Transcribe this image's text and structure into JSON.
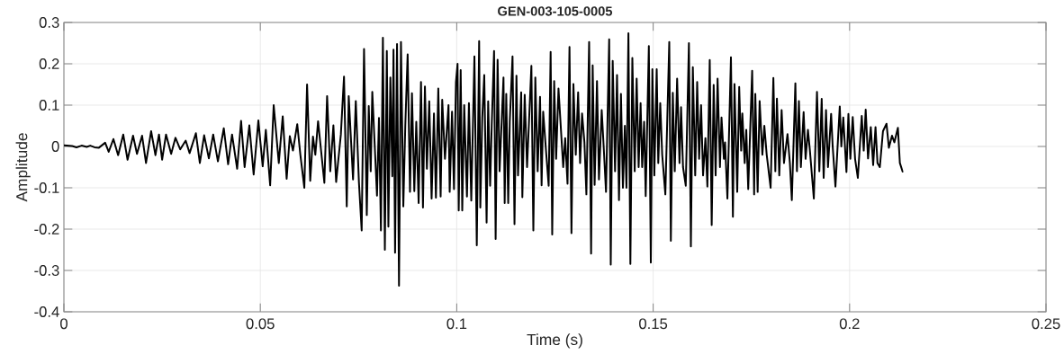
{
  "chart_data": {
    "type": "line",
    "title": "GEN-003-105-0005",
    "xlabel": "Time (s)",
    "ylabel": "Amplitude",
    "xlim": [
      0,
      0.25
    ],
    "ylim": [
      -0.4,
      0.3
    ],
    "xticks": [
      0,
      0.05,
      0.1,
      0.15,
      0.2,
      0.25
    ],
    "yticks": [
      -0.4,
      -0.3,
      -0.2,
      -0.1,
      0,
      0.1,
      0.2,
      0.3
    ],
    "grid": true,
    "line_style": "solid",
    "x": [
      0,
      0.0021,
      0.0032,
      0.0045,
      0.0058,
      0.0067,
      0.0078,
      0.0089,
      0.0105,
      0.0114,
      0.0126,
      0.0138,
      0.0151,
      0.0162,
      0.0176,
      0.0186,
      0.0199,
      0.0209,
      0.0222,
      0.0233,
      0.0242,
      0.025,
      0.026,
      0.0273,
      0.0284,
      0.0296,
      0.031,
      0.032,
      0.0336,
      0.0346,
      0.0357,
      0.0369,
      0.038,
      0.0392,
      0.0407,
      0.0418,
      0.0428,
      0.0441,
      0.0451,
      0.046,
      0.0472,
      0.0483,
      0.0495,
      0.0506,
      0.0514,
      0.0525,
      0.0534,
      0.0547,
      0.0557,
      0.0567,
      0.0575,
      0.0583,
      0.0594,
      0.0602,
      0.0612,
      0.0619,
      0.0627,
      0.0634,
      0.064,
      0.0647,
      0.0663,
      0.067,
      0.0678,
      0.0686,
      0.0693,
      0.0705,
      0.0713,
      0.072,
      0.0725,
      0.0736,
      0.0743,
      0.0751,
      0.0758,
      0.0764,
      0.0771,
      0.0776,
      0.0781,
      0.0785,
      0.0797,
      0.0802,
      0.0807,
      0.0812,
      0.0817,
      0.0822,
      0.0826,
      0.0831,
      0.0836,
      0.0839,
      0.0843,
      0.0848,
      0.0853,
      0.0858,
      0.0864,
      0.0869,
      0.0875,
      0.0881,
      0.0886,
      0.0892,
      0.0897,
      0.0903,
      0.0909,
      0.0914,
      0.0919,
      0.0924,
      0.093,
      0.0936,
      0.0942,
      0.0947,
      0.0953,
      0.0959,
      0.0963,
      0.097,
      0.0979,
      0.0982,
      0.0988,
      0.0993,
      0.0998,
      0.1002,
      0.1005,
      0.101,
      0.1014,
      0.1019,
      0.1026,
      0.1031,
      0.1037,
      0.1045,
      0.1051,
      0.1057,
      0.106,
      0.1065,
      0.107,
      0.1076,
      0.108,
      0.1085,
      0.1089,
      0.1095,
      0.1099,
      0.1104,
      0.1109,
      0.1119,
      0.1122,
      0.1126,
      0.1131,
      0.1135,
      0.1142,
      0.1147,
      0.1152,
      0.1156,
      0.1164,
      0.1167,
      0.1173,
      0.1179,
      0.119,
      0.1195,
      0.12,
      0.1206,
      0.1212,
      0.1216,
      0.122,
      0.1228,
      0.1234,
      0.1239,
      0.1243,
      0.1248,
      0.1253,
      0.1259,
      0.1271,
      0.1276,
      0.1282,
      0.1287,
      0.1292,
      0.1297,
      0.1303,
      0.1309,
      0.1314,
      0.1319,
      0.1325,
      0.133,
      0.1337,
      0.1342,
      0.1346,
      0.1351,
      0.1357,
      0.1362,
      0.1369,
      0.1374,
      0.138,
      0.1388,
      0.1392,
      0.1397,
      0.1403,
      0.1408,
      0.1413,
      0.1418,
      0.1423,
      0.1428,
      0.1432,
      0.1437,
      0.1442,
      0.1447,
      0.1453,
      0.1458,
      0.1463,
      0.1468,
      0.1472,
      0.1477,
      0.1481,
      0.1489,
      0.1494,
      0.1498,
      0.1503,
      0.1509,
      0.1513,
      0.1518,
      0.1523,
      0.1531,
      0.1541,
      0.1545,
      0.155,
      0.1555,
      0.1561,
      0.1567,
      0.1571,
      0.1576,
      0.1583,
      0.1591,
      0.1596,
      0.1601,
      0.1607,
      0.1612,
      0.1617,
      0.1622,
      0.1627,
      0.1633,
      0.1638,
      0.1644,
      0.1649,
      0.1654,
      0.1659,
      0.1664,
      0.167,
      0.1674,
      0.168,
      0.1683,
      0.1689,
      0.1698,
      0.1703,
      0.1707,
      0.1714,
      0.1719,
      0.1724,
      0.1727,
      0.1733,
      0.1737,
      0.1742,
      0.1752,
      0.1757,
      0.176,
      0.1766,
      0.1771,
      0.1778,
      0.1783,
      0.1789,
      0.1799,
      0.1806,
      0.1811,
      0.1815,
      0.1821,
      0.1827,
      0.1833,
      0.1842,
      0.1848,
      0.1853,
      0.1862,
      0.1866,
      0.1871,
      0.1876,
      0.1883,
      0.1888,
      0.1894,
      0.1899,
      0.1909,
      0.1917,
      0.1923,
      0.1929,
      0.1934,
      0.194,
      0.1945,
      0.1953,
      0.1957,
      0.1964,
      0.1975,
      0.1979,
      0.1984,
      0.1992,
      0.1997,
      0.2002,
      0.2008,
      0.2014,
      0.2021,
      0.2031,
      0.2036,
      0.2041,
      0.2047,
      0.2054,
      0.206,
      0.2066,
      0.2071,
      0.2077,
      0.2085,
      0.2094,
      0.21,
      0.2108,
      0.2114,
      0.2123,
      0.2128,
      0.2135
    ],
    "series": [
      {
        "color": "#000000",
        "values": [
          0.003,
          0.001,
          -0.002,
          0.002,
          -0.001,
          0.002,
          -0.002,
          -0.003,
          0.009,
          -0.013,
          0.018,
          -0.021,
          0.029,
          -0.032,
          0.026,
          -0.018,
          0.026,
          -0.04,
          0.037,
          -0.021,
          0.029,
          -0.032,
          0.029,
          -0.018,
          0.021,
          -0.007,
          0.014,
          -0.016,
          0.032,
          -0.04,
          0.027,
          -0.029,
          0.029,
          -0.036,
          0.044,
          -0.043,
          0.029,
          -0.054,
          0.062,
          -0.05,
          0.051,
          -0.068,
          0.063,
          -0.048,
          0.04,
          -0.094,
          0.1,
          -0.04,
          0.073,
          -0.078,
          0.025,
          -0.01,
          0.054,
          -0.021,
          -0.1,
          0.15,
          -0.083,
          0.024,
          -0.02,
          0.061,
          -0.088,
          0.122,
          -0.06,
          0.051,
          -0.086,
          0.029,
          0.169,
          -0.145,
          0.122,
          -0.08,
          0.11,
          -0.087,
          -0.203,
          0.236,
          -0.166,
          0.098,
          -0.06,
          0.132,
          -0.119,
          0.069,
          -0.203,
          0.263,
          -0.25,
          0.231,
          -0.194,
          0.167,
          -0.072,
          0.234,
          -0.257,
          0.248,
          -0.337,
          0.253,
          -0.145,
          0.05,
          0.223,
          -0.11,
          0.129,
          -0.108,
          0.06,
          -0.137,
          0.156,
          -0.148,
          0.145,
          -0.054,
          0.109,
          -0.126,
          0.08,
          -0.124,
          0.14,
          -0.121,
          0.113,
          -0.03,
          0.1,
          -0.11,
          0.084,
          -0.103,
          0.156,
          0.2,
          -0.155,
          0.185,
          -0.155,
          0.1,
          -0.121,
          0.105,
          -0.131,
          0.218,
          -0.239,
          0.255,
          -0.148,
          0.07,
          0.173,
          -0.184,
          0.109,
          -0.095,
          0.05,
          0.231,
          -0.224,
          0.21,
          -0.06,
          0.167,
          -0.137,
          0.127,
          -0.137,
          0.06,
          0.218,
          -0.188,
          0.171,
          -0.07,
          0.131,
          -0.123,
          0.125,
          -0.05,
          0.195,
          -0.203,
          0.167,
          -0.06,
          0.12,
          -0.094,
          0.084,
          -0.02,
          -0.095,
          0.229,
          -0.213,
          0.158,
          -0.03,
          0.14,
          -0.05,
          0.02,
          -0.09,
          0.241,
          -0.21,
          0.151,
          -0.02,
          0.131,
          -0.04,
          0.08,
          0.01,
          -0.116,
          0.253,
          -0.259,
          0.196,
          -0.093,
          0.158,
          -0.08,
          0.088,
          0.0,
          -0.11,
          0.259,
          -0.286,
          0.207,
          -0.06,
          0.173,
          -0.13,
          0.127,
          -0.1,
          0.05,
          -0.1,
          0.274,
          -0.284,
          0.214,
          -0.06,
          0.164,
          -0.05,
          0.105,
          -0.05,
          0.06,
          -0.12,
          0.243,
          -0.281,
          0.187,
          -0.07,
          0.187,
          -0.04,
          0.105,
          -0.02,
          -0.116,
          0.253,
          -0.228,
          0.13,
          -0.06,
          0.164,
          -0.04,
          0.095,
          -0.05,
          -0.095,
          0.25,
          -0.242,
          0.192,
          -0.07,
          0.156,
          -0.03,
          0.1,
          -0.07,
          0.02,
          -0.097,
          0.209,
          -0.19,
          0.149,
          -0.07,
          0.164,
          -0.05,
          0.07,
          -0.03,
          0.01,
          -0.126,
          0.216,
          -0.17,
          0.151,
          -0.11,
          0.144,
          -0.01,
          0.08,
          -0.04,
          0.04,
          -0.103,
          0.183,
          -0.116,
          0.127,
          -0.11,
          0.11,
          -0.02,
          0.05,
          -0.02,
          -0.1,
          0.166,
          -0.06,
          0.116,
          -0.07,
          0.088,
          -0.04,
          0.03,
          -0.04,
          -0.13,
          0.153,
          -0.06,
          0.11,
          -0.05,
          0.083,
          -0.03,
          0.04,
          -0.01,
          -0.126,
          0.132,
          -0.06,
          0.115,
          -0.076,
          0.088,
          -0.05,
          0.079,
          0.0,
          -0.097,
          0.097,
          0.0,
          0.07,
          -0.062,
          0.079,
          -0.03,
          0.071,
          -0.03,
          -0.076,
          0.074,
          -0.01,
          0.089,
          -0.029,
          0.047,
          -0.045,
          0.047,
          -0.04,
          -0.05,
          0.037,
          0.055,
          -0.003,
          0.026,
          0.01,
          0.045,
          -0.04,
          -0.061
        ]
      }
    ]
  }
}
